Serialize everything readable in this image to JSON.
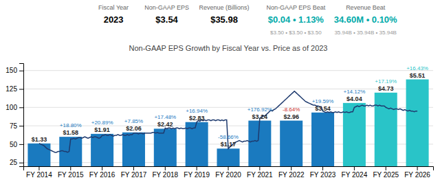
{
  "chart_data": {
    "type": "bar",
    "title": "Non-GAAP EPS Growth by Fiscal Year vs. Price as of 2023",
    "annotations": [
      "Fiscal Year",
      "2023",
      "Non-GAAP EPS",
      "$3.54",
      "Revenue (Billions)",
      "$35.98",
      "Non-GAAP EPS Beat",
      "$0.04 • 1.13%",
      "$3.50 • $3.50 • $3.50",
      "Revenue Beat",
      "34.60M • 0.10%",
      "35.94B • 35.94B • 35.94B"
    ],
    "categories": [
      "FY 2014",
      "FY 2015",
      "FY 2016",
      "FY 2017",
      "FY 2018",
      "FY 2019",
      "FY 2020",
      "FY 2021",
      "FY 2022",
      "FY 2023",
      "FY 2024",
      "FY 2025",
      "FY 2026"
    ],
    "series": [
      {
        "type": "bar",
        "values": [
          51,
          60,
          64,
          66,
          71,
          80,
          44,
          82,
          82,
          93,
          106,
          120,
          138
        ],
        "colors": [
          "#1a7abf",
          "#1a7abf",
          "#1a7abf",
          "#1a7abf",
          "#1a7abf",
          "#1a7abf",
          "#1a7abf",
          "#1a7abf",
          "#1a7abf",
          "#1a7abf",
          "#29c4c8",
          "#29c4c8",
          "#29c4c8"
        ],
        "eps_labels": [
          "$1.33",
          "$1.58",
          "$1.91",
          "$2.06",
          "$2.42",
          "$2.83",
          "$1.17",
          "$3.24",
          "$2.96",
          "$3.54",
          "$4.04",
          "$4.73",
          "$5.51"
        ],
        "pct_changes": [
          null,
          "+18.80%",
          "+20.89%",
          "+7.85%",
          "+17.48%",
          "+16.94%",
          "-58.66%",
          "+176.92%",
          "-8.64%",
          "+19.59%",
          "+14.12%",
          "+17.19%",
          "+16.43%"
        ],
        "pct_colors": [
          null,
          "#1a7abf",
          "#1a7abf",
          "#1a7abf",
          "#1a7abf",
          "#1a7abf",
          "#1a7abf",
          "#1a7abf",
          "#cc2929",
          "#1a7abf",
          "#1a7abf",
          "#29c4c8",
          "#29c4c8"
        ]
      },
      {
        "type": "line",
        "color": "#1e3a6e",
        "x": [
          0.0,
          0.05,
          0.1,
          0.15,
          0.2,
          0.25,
          0.3,
          0.35,
          0.4,
          0.45,
          0.5,
          0.55,
          0.6,
          0.65,
          0.7,
          0.75,
          0.8,
          0.85,
          0.9,
          0.95,
          1.0,
          1.05,
          1.1,
          1.15,
          1.2,
          1.25,
          1.3,
          1.35,
          1.4,
          1.45,
          1.5,
          1.55,
          1.6,
          1.65,
          1.7,
          1.75,
          1.8,
          1.85,
          1.9,
          1.95,
          2.0,
          2.05,
          2.1,
          2.15,
          2.2,
          2.25,
          2.3,
          2.35,
          2.4,
          2.45,
          2.5,
          2.55,
          2.6,
          2.65,
          2.7,
          2.75,
          2.8,
          2.85,
          2.9,
          2.95,
          3.0,
          3.05,
          3.1,
          3.15,
          3.2,
          3.25,
          3.3,
          3.35,
          3.4,
          3.45,
          3.5,
          3.55,
          3.6,
          3.65,
          3.7,
          3.75,
          3.8,
          3.85,
          3.9,
          3.95,
          4.0,
          4.05,
          4.1,
          4.15,
          4.2,
          4.25,
          4.3,
          4.35,
          4.4,
          4.45,
          4.5,
          4.55,
          4.6,
          4.65,
          4.7,
          4.75,
          4.8,
          4.85,
          4.9,
          4.95,
          5.0,
          5.05,
          5.1,
          5.15,
          5.2,
          5.25,
          5.3,
          5.35,
          5.4,
          5.45,
          5.5,
          5.55,
          5.6,
          5.65,
          5.7,
          5.75,
          5.8,
          5.85,
          5.9,
          5.95,
          6.0,
          6.05,
          6.1,
          6.15,
          6.2,
          6.25,
          6.3,
          6.35,
          6.4,
          6.45,
          6.5,
          6.55,
          6.6,
          6.65,
          6.7,
          6.75,
          6.8,
          6.85,
          6.9,
          6.95,
          7.0,
          7.05,
          7.1,
          7.15,
          7.2,
          7.25,
          7.3,
          7.35,
          7.4,
          7.45,
          7.5,
          7.55,
          7.6,
          7.65,
          7.7,
          7.75,
          7.8,
          7.85,
          7.9,
          7.95,
          8.0,
          8.05,
          8.1,
          8.15,
          8.2,
          8.25,
          8.3,
          8.35,
          8.4,
          8.45,
          8.5,
          8.55,
          8.6,
          8.65,
          8.7,
          8.75,
          8.8,
          8.85,
          8.9,
          8.95,
          9.0,
          9.05,
          9.1,
          9.15,
          9.2,
          9.25,
          9.3,
          9.35,
          9.4,
          9.45,
          9.5,
          9.55,
          9.6,
          9.65,
          9.7,
          9.75,
          9.8,
          9.85,
          9.9,
          9.95,
          10.0,
          10.05,
          10.1,
          10.15,
          10.2,
          10.25,
          10.3,
          10.35,
          10.4,
          10.45,
          10.5,
          10.55,
          10.6,
          10.65,
          10.7,
          10.75,
          10.8,
          10.85,
          10.9,
          10.95,
          11.0,
          11.05,
          11.1,
          11.15,
          11.2,
          11.25,
          11.3,
          11.35,
          11.4,
          11.45,
          11.5,
          11.55,
          11.6,
          11.65,
          11.7,
          11.75,
          11.8,
          11.85,
          11.9,
          11.95,
          12.0
        ],
        "values": [
          51,
          50,
          49,
          48,
          46,
          44,
          43,
          42,
          41,
          40,
          39,
          39,
          40,
          40,
          41,
          41,
          40,
          40,
          39,
          40,
          57,
          57,
          58,
          57,
          58,
          59,
          59,
          58,
          59,
          60,
          59,
          58,
          59,
          60,
          59,
          60,
          60,
          59,
          58,
          59,
          62,
          62,
          63,
          62,
          62,
          63,
          62,
          61,
          62,
          62,
          63,
          62,
          62,
          63,
          62,
          62,
          63,
          62,
          63,
          63,
          65,
          65,
          65,
          64,
          65,
          65,
          64,
          65,
          65,
          65,
          65,
          65,
          66,
          66,
          65,
          66,
          65,
          65,
          65,
          65,
          72,
          71,
          72,
          72,
          71,
          72,
          71,
          72,
          72,
          71,
          72,
          71,
          71,
          72,
          71,
          72,
          72,
          71,
          72,
          72,
          80,
          82,
          81,
          83,
          82,
          83,
          82,
          83,
          83,
          82,
          83,
          83,
          82,
          83,
          83,
          82,
          83,
          82,
          83,
          83,
          44,
          46,
          48,
          50,
          52,
          53,
          54,
          55,
          54,
          53,
          54,
          54,
          55,
          54,
          53,
          54,
          54,
          55,
          54,
          55,
          85,
          87,
          89,
          88,
          90,
          92,
          94,
          96,
          95,
          97,
          98,
          100,
          102,
          104,
          106,
          108,
          110,
          112,
          114,
          116,
          118,
          120,
          122,
          120,
          118,
          116,
          114,
          112,
          110,
          108,
          107,
          106,
          105,
          104,
          103,
          103,
          102,
          102,
          101,
          101,
          95,
          94,
          93,
          94,
          93,
          94,
          93,
          93,
          94,
          93,
          94,
          93,
          93,
          94,
          93,
          94,
          93,
          93,
          94,
          94,
          100,
          101,
          102,
          101,
          102,
          103,
          102,
          102,
          103,
          102,
          103,
          102,
          102,
          103,
          103,
          102,
          103,
          102,
          102,
          102,
          100,
          99,
          98,
          99,
          98,
          97,
          98,
          98,
          97,
          98,
          97,
          96,
          97,
          96,
          95,
          96,
          95,
          95,
          94,
          95,
          95
        ]
      }
    ],
    "ylim": [
      20,
      160
    ],
    "yticks": [
      25,
      50,
      75,
      100,
      125,
      150
    ],
    "grid": true
  }
}
